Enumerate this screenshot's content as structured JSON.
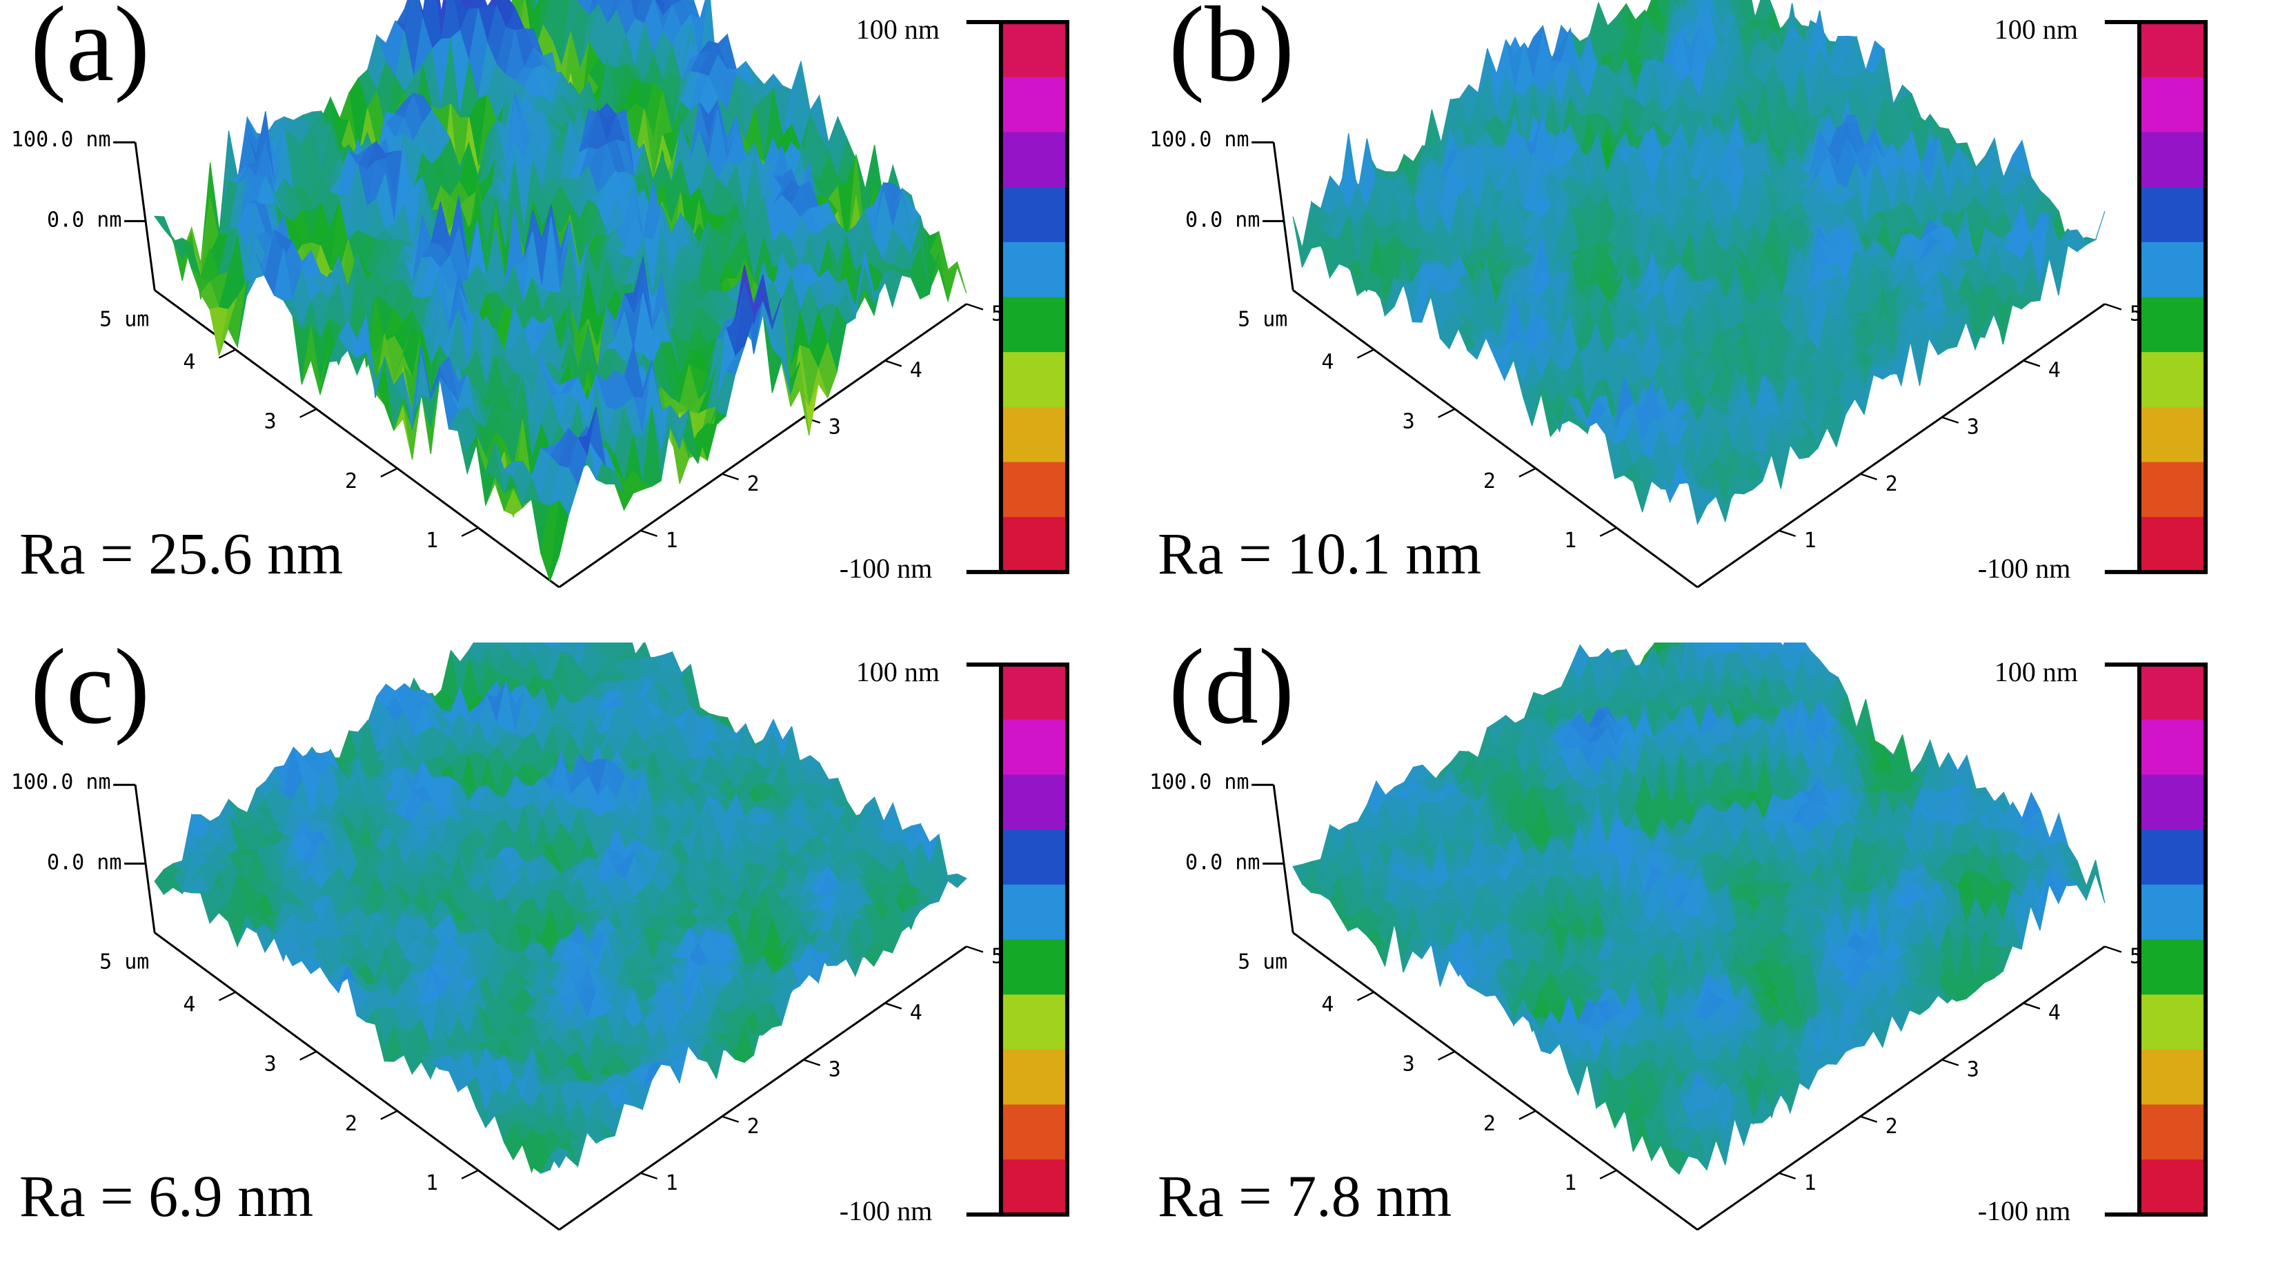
{
  "figure": {
    "colorscale": [
      "#d7143c",
      "#e0501e",
      "#dcaa14",
      "#a0d21e",
      "#14aa28",
      "#2891dc",
      "#2050c8",
      "#9614c8",
      "#d214c8",
      "#d7145a"
    ],
    "panels": [
      {
        "id": "a",
        "letter": "(a)",
        "ra": "Ra = 25.6 nm",
        "roughness": 1.0
      },
      {
        "id": "b",
        "letter": "(b)",
        "ra": "Ra = 10.1 nm",
        "roughness": 0.35
      },
      {
        "id": "c",
        "letter": "(c)",
        "ra": "Ra = 6.9 nm",
        "roughness": 0.22
      },
      {
        "id": "d",
        "letter": "(d)",
        "ra": "Ra = 7.8 nm",
        "roughness": 0.26
      }
    ],
    "z_axis": {
      "top": "100.0 nm",
      "zero": "0.0 nm"
    },
    "depth_axis": {
      "end": "5 um",
      "ticks": [
        "4",
        "3",
        "2",
        "1"
      ]
    },
    "right_axis": {
      "ticks": [
        "1",
        "2",
        "3",
        "4",
        "5"
      ]
    },
    "colorbar": {
      "max": "100 nm",
      "min": "-100 nm"
    }
  }
}
